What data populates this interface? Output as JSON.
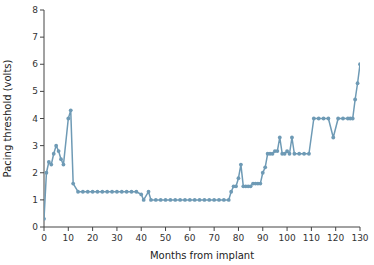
{
  "chart_data": {
    "type": "line",
    "xlabel": "Months from implant",
    "ylabel": "Pacing threshold (volts)",
    "xlim": [
      0,
      130
    ],
    "ylim": [
      0,
      8
    ],
    "xticks": [
      0,
      10,
      20,
      30,
      40,
      50,
      60,
      70,
      80,
      90,
      100,
      110,
      120,
      130
    ],
    "yticks": [
      0,
      1,
      2,
      3,
      4,
      5,
      6,
      7,
      8
    ],
    "color": "#6e9ab5",
    "marker": "o",
    "x": [
      0,
      1,
      2,
      3,
      4,
      5,
      6,
      7,
      8,
      10,
      11,
      12,
      14,
      16,
      18,
      20,
      22,
      24,
      26,
      28,
      30,
      32,
      34,
      36,
      38,
      40,
      41,
      43,
      44,
      46,
      48,
      50,
      52,
      54,
      56,
      58,
      60,
      62,
      64,
      66,
      68,
      70,
      72,
      74,
      76,
      77,
      78,
      79,
      80,
      81,
      82,
      83,
      84,
      85,
      86,
      87,
      88,
      89,
      90,
      91,
      92,
      93,
      94,
      95,
      96,
      97,
      98,
      99,
      100,
      101,
      102,
      103,
      105,
      107,
      109,
      111,
      113,
      115,
      117,
      119,
      121,
      123,
      125,
      126,
      127,
      128,
      129,
      130
    ],
    "values": [
      0.3,
      2.0,
      2.4,
      2.3,
      2.7,
      3.0,
      2.8,
      2.5,
      2.3,
      4.0,
      4.3,
      1.6,
      1.3,
      1.3,
      1.3,
      1.3,
      1.3,
      1.3,
      1.3,
      1.3,
      1.3,
      1.3,
      1.3,
      1.3,
      1.3,
      1.2,
      1.0,
      1.3,
      1.0,
      1.0,
      1.0,
      1.0,
      1.0,
      1.0,
      1.0,
      1.0,
      1.0,
      1.0,
      1.0,
      1.0,
      1.0,
      1.0,
      1.0,
      1.0,
      1.0,
      1.3,
      1.5,
      1.5,
      1.8,
      2.3,
      1.5,
      1.5,
      1.5,
      1.5,
      1.6,
      1.6,
      1.6,
      1.6,
      2.0,
      2.2,
      2.7,
      2.7,
      2.7,
      2.8,
      2.8,
      3.3,
      2.7,
      2.7,
      2.8,
      2.7,
      3.3,
      2.7,
      2.7,
      2.7,
      2.7,
      4.0,
      4.0,
      4.0,
      4.0,
      3.3,
      4.0,
      4.0,
      4.0,
      4.0,
      4.0,
      4.7,
      5.3,
      6.0
    ]
  }
}
